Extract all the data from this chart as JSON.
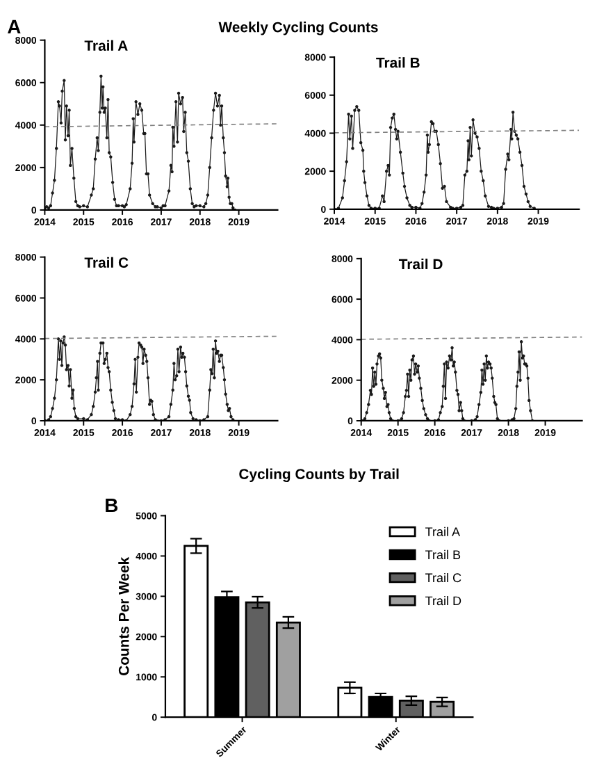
{
  "chart_data": [
    {
      "type": "line",
      "title": "Trail A",
      "annotations": [
        "A",
        "Weekly Cycling Counts"
      ],
      "xlim": [
        2014,
        2020
      ],
      "xticks": [
        2014,
        2015,
        2016,
        2017,
        2018,
        2019
      ],
      "ylim": [
        0,
        8000
      ],
      "yticks": [
        0,
        2000,
        4000,
        6000,
        8000
      ],
      "marker": "circle",
      "line_style": "solid",
      "series": [
        {
          "color": "#1a1a1a",
          "x": [
            2014.0,
            2014.05,
            2014.1,
            2014.15,
            2014.2,
            2014.25,
            2014.3,
            2014.35,
            2014.38,
            2014.42,
            2014.45,
            2014.5,
            2014.53,
            2014.56,
            2014.6,
            2014.63,
            2014.66,
            2014.7,
            2014.75,
            2014.8,
            2014.85,
            2014.9,
            2015.0,
            2015.1,
            2015.2,
            2015.25,
            2015.3,
            2015.35,
            2015.38,
            2015.42,
            2015.45,
            2015.48,
            2015.5,
            2015.53,
            2015.56,
            2015.6,
            2015.63,
            2015.66,
            2015.7,
            2015.75,
            2015.8,
            2015.85,
            2015.9,
            2016.0,
            2016.05,
            2016.1,
            2016.2,
            2016.25,
            2016.28,
            2016.3,
            2016.35,
            2016.4,
            2016.45,
            2016.5,
            2016.55,
            2016.58,
            2016.62,
            2016.66,
            2016.7,
            2016.78,
            2016.85,
            2016.9,
            2017.0,
            2017.05,
            2017.1,
            2017.2,
            2017.25,
            2017.28,
            2017.3,
            2017.33,
            2017.38,
            2017.42,
            2017.45,
            2017.5,
            2017.55,
            2017.58,
            2017.62,
            2017.66,
            2017.7,
            2017.75,
            2017.8,
            2017.85,
            2017.9,
            2018.0,
            2018.1,
            2018.15,
            2018.2,
            2018.25,
            2018.3,
            2018.35,
            2018.4,
            2018.45,
            2018.5,
            2018.53,
            2018.56,
            2018.6,
            2018.63,
            2018.66,
            2018.7,
            2018.72,
            2018.75,
            2018.78,
            2018.82,
            2018.85,
            2018.9
          ],
          "values": [
            100,
            150,
            100,
            200,
            800,
            1400,
            2900,
            5100,
            4900,
            4100,
            5600,
            6100,
            3300,
            4900,
            3500,
            4700,
            2100,
            2900,
            1500,
            400,
            200,
            150,
            200,
            150,
            700,
            1000,
            2400,
            3400,
            2800,
            4600,
            6300,
            4800,
            5800,
            4600,
            4800,
            3400,
            5200,
            2700,
            2500,
            1300,
            500,
            200,
            200,
            200,
            150,
            250,
            1000,
            2200,
            4300,
            3200,
            5100,
            4500,
            5000,
            4700,
            3600,
            3600,
            1700,
            1700,
            700,
            300,
            150,
            150,
            100,
            200,
            200,
            900,
            2100,
            1800,
            3900,
            3000,
            5100,
            3200,
            5500,
            5000,
            5300,
            3700,
            4600,
            2700,
            2300,
            1000,
            300,
            150,
            200,
            200,
            150,
            300,
            700,
            2000,
            3400,
            4700,
            5500,
            4900,
            5400,
            4000,
            4900,
            3400,
            2700,
            1600,
            1100,
            1500,
            600,
            300,
            300,
            100,
            0
          ]
        },
        {
          "type": "line",
          "color": "#808080",
          "line_style": "dashed",
          "marker": "none",
          "x": [
            2014,
            2020
          ],
          "values": [
            3920,
            4060
          ]
        }
      ]
    },
    {
      "type": "line",
      "title": "Trail B",
      "xlim": [
        2014,
        2020
      ],
      "xticks": [
        2014,
        2015,
        2016,
        2017,
        2018,
        2019
      ],
      "ylim": [
        0,
        8000
      ],
      "yticks": [
        0,
        2000,
        4000,
        6000,
        8000
      ],
      "marker": "circle",
      "line_style": "solid",
      "series": [
        {
          "color": "#1a1a1a",
          "x": [
            2014.0,
            2014.1,
            2014.2,
            2014.25,
            2014.3,
            2014.35,
            2014.38,
            2014.42,
            2014.45,
            2014.5,
            2014.55,
            2014.6,
            2014.65,
            2014.7,
            2014.72,
            2014.75,
            2014.8,
            2014.85,
            2014.9,
            2015.0,
            2015.1,
            2015.18,
            2015.22,
            2015.28,
            2015.32,
            2015.35,
            2015.38,
            2015.42,
            2015.46,
            2015.5,
            2015.53,
            2015.56,
            2015.62,
            2015.68,
            2015.72,
            2015.78,
            2015.85,
            2015.9,
            2016.0,
            2016.1,
            2016.15,
            2016.2,
            2016.25,
            2016.28,
            2016.3,
            2016.33,
            2016.38,
            2016.42,
            2016.46,
            2016.5,
            2016.55,
            2016.6,
            2016.65,
            2016.7,
            2016.75,
            2016.85,
            2016.9,
            2017.0,
            2017.1,
            2017.15,
            2017.2,
            2017.25,
            2017.28,
            2017.3,
            2017.33,
            2017.36,
            2017.4,
            2017.45,
            2017.5,
            2017.55,
            2017.6,
            2017.65,
            2017.7,
            2017.78,
            2017.85,
            2017.9,
            2018.0,
            2018.1,
            2018.15,
            2018.2,
            2018.25,
            2018.28,
            2018.33,
            2018.35,
            2018.38,
            2018.42,
            2018.46,
            2018.5,
            2018.55,
            2018.6,
            2018.65,
            2018.7,
            2018.75,
            2018.8,
            2018.9
          ],
          "values": [
            0,
            50,
            600,
            1500,
            2500,
            5000,
            3700,
            4900,
            3200,
            5200,
            5400,
            5200,
            3500,
            3100,
            2000,
            1400,
            700,
            200,
            50,
            50,
            50,
            700,
            400,
            2000,
            2300,
            1800,
            4300,
            4800,
            5000,
            4200,
            3700,
            4100,
            3000,
            1900,
            1200,
            600,
            200,
            100,
            100,
            50,
            300,
            900,
            1800,
            3900,
            3000,
            3400,
            4600,
            4500,
            4100,
            4100,
            3400,
            2400,
            1100,
            1200,
            400,
            100,
            50,
            50,
            100,
            200,
            1800,
            2000,
            3600,
            2600,
            4300,
            2800,
            4700,
            4000,
            3800,
            3200,
            2000,
            1500,
            700,
            150,
            100,
            50,
            50,
            100,
            300,
            2100,
            2900,
            2600,
            4200,
            3700,
            5100,
            4100,
            3900,
            3700,
            3000,
            2300,
            1200,
            800,
            400,
            150,
            50
          ]
        },
        {
          "type": "line",
          "color": "#808080",
          "line_style": "dashed",
          "marker": "none",
          "x": [
            2014,
            2020
          ],
          "values": [
            4020,
            4150
          ]
        }
      ]
    },
    {
      "type": "line",
      "title": "Trail C",
      "xlim": [
        2014,
        2020
      ],
      "xticks": [
        2014,
        2015,
        2016,
        2017,
        2018,
        2019
      ],
      "ylim": [
        0,
        8000
      ],
      "yticks": [
        0,
        2000,
        4000,
        6000,
        8000
      ],
      "marker": "circle",
      "line_style": "solid",
      "series": [
        {
          "color": "#1a1a1a",
          "x": [
            2014.0,
            2014.1,
            2014.15,
            2014.2,
            2014.25,
            2014.3,
            2014.35,
            2014.38,
            2014.41,
            2014.44,
            2014.47,
            2014.5,
            2014.53,
            2014.56,
            2014.6,
            2014.63,
            2014.66,
            2014.7,
            2014.73,
            2014.76,
            2014.8,
            2014.85,
            2015.0,
            2015.1,
            2015.2,
            2015.25,
            2015.3,
            2015.33,
            2015.36,
            2015.38,
            2015.42,
            2015.45,
            2015.5,
            2015.53,
            2015.56,
            2015.6,
            2015.63,
            2015.66,
            2015.7,
            2015.74,
            2015.78,
            2015.82,
            2015.9,
            2016.0,
            2016.1,
            2016.2,
            2016.25,
            2016.3,
            2016.33,
            2016.36,
            2016.4,
            2016.43,
            2016.47,
            2016.5,
            2016.53,
            2016.56,
            2016.6,
            2016.63,
            2016.66,
            2016.7,
            2016.73,
            2016.76,
            2016.8,
            2016.85,
            2017.0,
            2017.1,
            2017.2,
            2017.25,
            2017.3,
            2017.33,
            2017.36,
            2017.4,
            2017.43,
            2017.46,
            2017.5,
            2017.53,
            2017.56,
            2017.6,
            2017.63,
            2017.66,
            2017.7,
            2017.73,
            2017.76,
            2017.82,
            2017.9,
            2018.0,
            2018.1,
            2018.2,
            2018.25,
            2018.28,
            2018.31,
            2018.34,
            2018.37,
            2018.4,
            2018.43,
            2018.46,
            2018.5,
            2018.53,
            2018.56,
            2018.6,
            2018.63,
            2018.66,
            2018.7,
            2018.73,
            2018.76,
            2018.8,
            2018.85
          ],
          "values": [
            0,
            50,
            200,
            600,
            1100,
            2000,
            4000,
            3000,
            3900,
            2700,
            3800,
            4100,
            3700,
            2500,
            2700,
            1700,
            2500,
            1100,
            1500,
            600,
            200,
            100,
            100,
            50,
            300,
            700,
            1400,
            2100,
            2900,
            1500,
            3300,
            3800,
            3800,
            2800,
            3000,
            3300,
            2600,
            2400,
            1500,
            900,
            500,
            100,
            50,
            50,
            0,
            300,
            700,
            1800,
            3000,
            1400,
            3100,
            3800,
            3700,
            3600,
            2800,
            3500,
            3200,
            2900,
            2100,
            800,
            1000,
            950,
            300,
            50,
            0,
            50,
            200,
            800,
            1500,
            2800,
            2000,
            2200,
            3500,
            2400,
            3600,
            3100,
            3300,
            3100,
            2400,
            1700,
            1200,
            1000,
            400,
            100,
            50,
            0,
            50,
            200,
            1500,
            2500,
            2300,
            3500,
            2100,
            3900,
            3300,
            3400,
            2900,
            3200,
            3200,
            2600,
            2000,
            1300,
            800,
            500,
            600,
            200,
            50
          ]
        },
        {
          "type": "line",
          "color": "#808080",
          "line_style": "dashed",
          "marker": "none",
          "x": [
            2014,
            2020
          ],
          "values": [
            4020,
            4130
          ]
        }
      ]
    },
    {
      "type": "line",
      "title": "Trail D",
      "xlim": [
        2014,
        2020
      ],
      "xticks": [
        2014,
        2015,
        2016,
        2017,
        2018,
        2019
      ],
      "ylim": [
        0,
        8000
      ],
      "yticks": [
        0,
        2000,
        4000,
        6000,
        8000
      ],
      "marker": "circle",
      "line_style": "solid",
      "series": [
        {
          "color": "#1a1a1a",
          "x": [
            2014.0,
            2014.05,
            2014.1,
            2014.15,
            2014.2,
            2014.25,
            2014.28,
            2014.31,
            2014.34,
            2014.37,
            2014.4,
            2014.43,
            2014.47,
            2014.5,
            2014.53,
            2014.56,
            2014.6,
            2014.63,
            2014.66,
            2014.7,
            2014.73,
            2014.76,
            2014.8,
            2014.85,
            2015.0,
            2015.1,
            2015.15,
            2015.2,
            2015.23,
            2015.26,
            2015.29,
            2015.32,
            2015.35,
            2015.38,
            2015.42,
            2015.45,
            2015.48,
            2015.52,
            2015.55,
            2015.58,
            2015.62,
            2015.66,
            2015.7,
            2015.75,
            2015.8,
            2015.85,
            2016.0,
            2016.1,
            2016.15,
            2016.2,
            2016.23,
            2016.26,
            2016.29,
            2016.32,
            2016.36,
            2016.4,
            2016.44,
            2016.47,
            2016.5,
            2016.53,
            2016.56,
            2016.6,
            2016.63,
            2016.66,
            2016.7,
            2016.73,
            2016.76,
            2016.8,
            2017.0,
            2017.1,
            2017.15,
            2017.2,
            2017.25,
            2017.28,
            2017.31,
            2017.34,
            2017.37,
            2017.4,
            2017.43,
            2017.46,
            2017.5,
            2017.53,
            2017.56,
            2017.6,
            2017.63,
            2017.66,
            2017.7,
            2017.75,
            2018.0,
            2018.1,
            2018.15,
            2018.2,
            2018.23,
            2018.26,
            2018.29,
            2018.32,
            2018.35,
            2018.38,
            2018.41,
            2018.44,
            2018.47,
            2018.5,
            2018.53,
            2018.56,
            2018.6,
            2018.65
          ],
          "values": [
            0,
            0,
            100,
            400,
            800,
            1500,
            1300,
            2600,
            1700,
            2400,
            1800,
            2800,
            3200,
            3300,
            3100,
            2000,
            1600,
            1100,
            1400,
            700,
            800,
            400,
            100,
            0,
            0,
            100,
            400,
            1200,
            1500,
            2300,
            1200,
            2500,
            2000,
            3000,
            3200,
            2300,
            2800,
            2400,
            2700,
            2100,
            1600,
            1000,
            600,
            300,
            100,
            0,
            0,
            50,
            400,
            700,
            1700,
            2800,
            1100,
            2900,
            2600,
            3200,
            3000,
            3600,
            2700,
            2900,
            2400,
            1500,
            1300,
            500,
            900,
            500,
            100,
            0,
            0,
            50,
            200,
            800,
            1400,
            2500,
            1800,
            2800,
            2000,
            3200,
            2600,
            2900,
            2800,
            2600,
            2100,
            1200,
            900,
            800,
            100,
            0,
            0,
            50,
            100,
            600,
            1700,
            2400,
            3400,
            2000,
            3900,
            3100,
            3200,
            2800,
            2800,
            2700,
            2100,
            1000,
            500,
            0
          ]
        },
        {
          "type": "line",
          "color": "#808080",
          "line_style": "dashed",
          "marker": "none",
          "x": [
            2014,
            2020
          ],
          "values": [
            4020,
            4130
          ]
        }
      ]
    },
    {
      "type": "bar",
      "title": "Cycling Counts by Trail",
      "annotations": [
        "B"
      ],
      "ylabel": "Counts Per Week",
      "categories": [
        "Summer",
        "Winter"
      ],
      "ylim": [
        0,
        5000
      ],
      "yticks": [
        0,
        1000,
        2000,
        3000,
        4000,
        5000
      ],
      "legend": "top right",
      "series": [
        {
          "name": "Trail A",
          "color": "#ffffff",
          "values": [
            4250,
            730
          ],
          "errors": [
            180,
            140
          ]
        },
        {
          "name": "Trail B",
          "color": "#000000",
          "values": [
            2980,
            500
          ],
          "errors": [
            140,
            90
          ]
        },
        {
          "name": "Trail C",
          "color": "#606060",
          "values": [
            2850,
            410
          ],
          "errors": [
            140,
            110
          ]
        },
        {
          "name": "Trail D",
          "color": "#a0a0a0",
          "values": [
            2350,
            380
          ],
          "errors": [
            140,
            110
          ]
        }
      ]
    }
  ]
}
